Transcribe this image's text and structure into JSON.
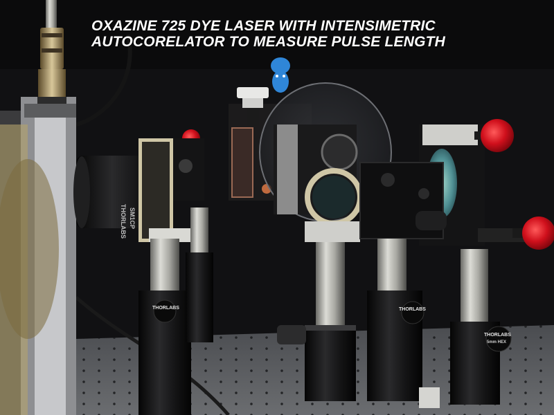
{
  "photo": {
    "caption_line_1": "OXAZINE 725 DYE LASER WITH INTENSIMETRIC",
    "caption_line_2": "AUTOCORELATOR TO MEASURE PULSE LENGTH",
    "brand_label": "THORLABS",
    "small_label": "SM1CP",
    "hex_label": "5mm HEX"
  },
  "colors": {
    "background": "#0b0b0c",
    "caption_text": "#ffffff",
    "knob_red": "#d0101c",
    "post_steel": "#b9b9b2",
    "table_gray": "#5f6164"
  }
}
